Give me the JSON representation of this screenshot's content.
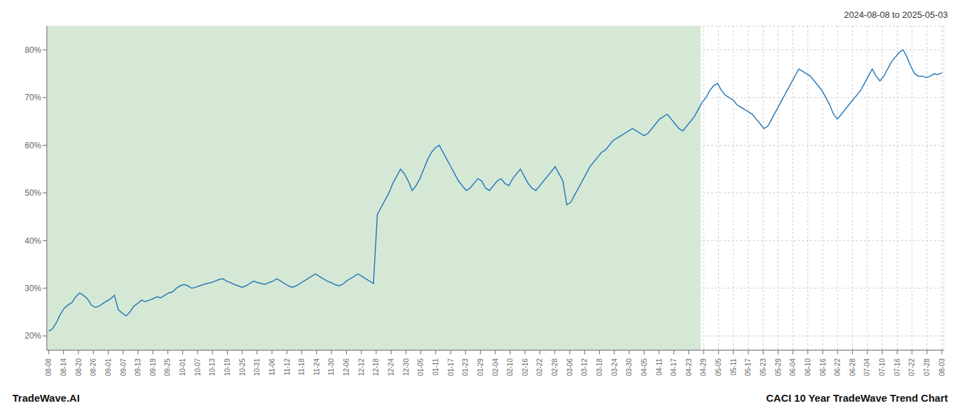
{
  "chart_data": {
    "type": "line",
    "title": "CACI 10 Year TradeWave Trend Chart",
    "subtitle": "2024-08-08 to 2025-05-03",
    "annotations": [
      "TradeWave.AI"
    ],
    "color": "#2878b8",
    "grid": true,
    "shade": {
      "from": -0.5,
      "to": 168.63,
      "color": "#d5e8d5"
    },
    "xlim": [
      -0.5,
      231.5
    ],
    "ylim": [
      17,
      85
    ],
    "yticks": [
      {
        "value": 20,
        "label": "20%"
      },
      {
        "value": 30,
        "label": "30%"
      },
      {
        "value": 40,
        "label": "40%"
      },
      {
        "value": 50,
        "label": "50%"
      },
      {
        "value": 60,
        "label": "60%"
      },
      {
        "value": 70,
        "label": "70%"
      },
      {
        "value": 80,
        "label": "80%"
      }
    ],
    "xticks": [
      {
        "value": 0,
        "label": "08-08"
      },
      {
        "value": 3.85,
        "label": "08-14"
      },
      {
        "value": 7.7,
        "label": "08-20"
      },
      {
        "value": 11.55,
        "label": "08-26"
      },
      {
        "value": 15.4,
        "label": "09-01"
      },
      {
        "value": 19.25,
        "label": "09-07"
      },
      {
        "value": 23.1,
        "label": "09-13"
      },
      {
        "value": 26.95,
        "label": "09-19"
      },
      {
        "value": 30.8,
        "label": "09-25"
      },
      {
        "value": 34.65,
        "label": "10-01"
      },
      {
        "value": 38.5,
        "label": "10-07"
      },
      {
        "value": 42.35,
        "label": "10-13"
      },
      {
        "value": 46.2,
        "label": "10-19"
      },
      {
        "value": 50.05,
        "label": "10-25"
      },
      {
        "value": 53.9,
        "label": "10-31"
      },
      {
        "value": 57.75,
        "label": "11-06"
      },
      {
        "value": 61.6,
        "label": "11-12"
      },
      {
        "value": 65.45,
        "label": "11-18"
      },
      {
        "value": 69.3,
        "label": "11-24"
      },
      {
        "value": 73.15,
        "label": "11-30"
      },
      {
        "value": 77,
        "label": "12-06"
      },
      {
        "value": 80.85,
        "label": "12-12"
      },
      {
        "value": 84.7,
        "label": "12-18"
      },
      {
        "value": 88.55,
        "label": "12-24"
      },
      {
        "value": 92.4,
        "label": "12-30"
      },
      {
        "value": 96.25,
        "label": "01-05"
      },
      {
        "value": 100.1,
        "label": "01-11"
      },
      {
        "value": 103.95,
        "label": "01-17"
      },
      {
        "value": 107.8,
        "label": "01-23"
      },
      {
        "value": 111.65,
        "label": "01-29"
      },
      {
        "value": 115.5,
        "label": "02-04"
      },
      {
        "value": 119.35,
        "label": "02-10"
      },
      {
        "value": 123.2,
        "label": "02-16"
      },
      {
        "value": 127.05,
        "label": "02-22"
      },
      {
        "value": 130.9,
        "label": "02-28"
      },
      {
        "value": 134.75,
        "label": "03-06"
      },
      {
        "value": 138.6,
        "label": "03-12"
      },
      {
        "value": 142.45,
        "label": "03-18"
      },
      {
        "value": 146.3,
        "label": "03-24"
      },
      {
        "value": 150.15,
        "label": "03-30"
      },
      {
        "value": 154,
        "label": "04-05"
      },
      {
        "value": 157.85,
        "label": "04-11"
      },
      {
        "value": 161.7,
        "label": "04-17"
      },
      {
        "value": 165.55,
        "label": "04-23"
      },
      {
        "value": 169.4,
        "label": "04-29"
      },
      {
        "value": 173.25,
        "label": "05-05"
      },
      {
        "value": 177.1,
        "label": "05-11"
      },
      {
        "value": 180.95,
        "label": "05-17"
      },
      {
        "value": 184.8,
        "label": "05-23"
      },
      {
        "value": 188.65,
        "label": "05-29"
      },
      {
        "value": 192.5,
        "label": "06-04"
      },
      {
        "value": 196.35,
        "label": "06-10"
      },
      {
        "value": 200.2,
        "label": "06-16"
      },
      {
        "value": 204.05,
        "label": "06-22"
      },
      {
        "value": 207.9,
        "label": "06-28"
      },
      {
        "value": 211.75,
        "label": "07-04"
      },
      {
        "value": 215.6,
        "label": "07-10"
      },
      {
        "value": 219.45,
        "label": "07-16"
      },
      {
        "value": 223.3,
        "label": "07-22"
      },
      {
        "value": 227.15,
        "label": "07-28"
      },
      {
        "value": 231,
        "label": "08-03"
      }
    ],
    "x": [
      0,
      1,
      2,
      3,
      4,
      5,
      6,
      7,
      8,
      9,
      10,
      11,
      12,
      13,
      14,
      15,
      16,
      17,
      18,
      19,
      20,
      21,
      22,
      23,
      24,
      25,
      26,
      27,
      28,
      29,
      30,
      31,
      32,
      33,
      34,
      35,
      36,
      37,
      38,
      39,
      40,
      41,
      42,
      43,
      44,
      45,
      46,
      47,
      48,
      49,
      50,
      51,
      52,
      53,
      54,
      55,
      56,
      57,
      58,
      59,
      60,
      61,
      62,
      63,
      64,
      65,
      66,
      67,
      68,
      69,
      70,
      71,
      72,
      73,
      74,
      75,
      76,
      77,
      78,
      79,
      80,
      81,
      82,
      83,
      84,
      85,
      86,
      87,
      88,
      89,
      90,
      91,
      92,
      93,
      94,
      95,
      96,
      97,
      98,
      99,
      100,
      101,
      102,
      103,
      104,
      105,
      106,
      107,
      108,
      109,
      110,
      111,
      112,
      113,
      114,
      115,
      116,
      117,
      118,
      119,
      120,
      121,
      122,
      123,
      124,
      125,
      126,
      127,
      128,
      129,
      130,
      131,
      132,
      133,
      134,
      135,
      136,
      137,
      138,
      139,
      140,
      141,
      142,
      143,
      144,
      145,
      146,
      147,
      148,
      149,
      150,
      151,
      152,
      153,
      154,
      155,
      156,
      157,
      158,
      159,
      160,
      161,
      162,
      163,
      164,
      165,
      166,
      167,
      168,
      169,
      170,
      171,
      172,
      173,
      174,
      175,
      176,
      177,
      178,
      179,
      180,
      181,
      182,
      183,
      184,
      185,
      186,
      187,
      188,
      189,
      190,
      191,
      192,
      193,
      194,
      195,
      196,
      197,
      198,
      199,
      200,
      201,
      202,
      203,
      204,
      205,
      206,
      207,
      208,
      209,
      210,
      211,
      212,
      213,
      214,
      215,
      216,
      217,
      218,
      219,
      220,
      221,
      222,
      223,
      224,
      225,
      226,
      227,
      228,
      229,
      230,
      231
    ],
    "values": [
      21.0,
      21.5,
      22.8,
      24.5,
      25.8,
      26.5,
      27.0,
      28.2,
      29.0,
      28.5,
      27.8,
      26.5,
      26.0,
      26.2,
      26.8,
      27.3,
      27.8,
      28.5,
      25.5,
      24.8,
      24.2,
      25.0,
      26.2,
      26.8,
      27.5,
      27.2,
      27.5,
      27.8,
      28.2,
      28.0,
      28.5,
      29.0,
      29.2,
      30.0,
      30.5,
      30.8,
      30.5,
      30.0,
      30.2,
      30.5,
      30.8,
      31.0,
      31.2,
      31.5,
      31.8,
      32.0,
      31.5,
      31.2,
      30.8,
      30.5,
      30.2,
      30.5,
      31.0,
      31.5,
      31.2,
      31.0,
      30.8,
      31.2,
      31.5,
      32.0,
      31.5,
      31.0,
      30.5,
      30.2,
      30.5,
      31.0,
      31.5,
      32.0,
      32.5,
      33.0,
      32.5,
      32.0,
      31.5,
      31.2,
      30.8,
      30.5,
      30.8,
      31.5,
      32.0,
      32.5,
      33.0,
      32.5,
      32.0,
      31.5,
      31.0,
      45.5,
      47.0,
      48.5,
      50.0,
      52.0,
      53.5,
      55.0,
      54.0,
      52.5,
      50.5,
      51.5,
      53.0,
      55.0,
      57.0,
      58.5,
      59.5,
      60.0,
      58.5,
      57.0,
      55.5,
      54.0,
      52.5,
      51.5,
      50.5,
      51.0,
      52.0,
      53.0,
      52.5,
      51.0,
      50.5,
      51.5,
      52.5,
      53.0,
      52.0,
      51.5,
      53.0,
      54.0,
      55.0,
      53.5,
      52.0,
      51.0,
      50.5,
      51.5,
      52.5,
      53.5,
      54.5,
      55.5,
      54.0,
      52.5,
      47.5,
      48.0,
      49.5,
      51.0,
      52.5,
      54.0,
      55.5,
      56.5,
      57.5,
      58.5,
      59.0,
      60.0,
      61.0,
      61.5,
      62.0,
      62.5,
      63.0,
      63.5,
      63.0,
      62.5,
      62.0,
      62.5,
      63.5,
      64.5,
      65.5,
      66.0,
      66.5,
      65.5,
      64.5,
      63.5,
      63.0,
      64.0,
      65.0,
      66.0,
      67.5,
      69.0,
      70.0,
      71.5,
      72.5,
      73.0,
      71.5,
      70.5,
      70.0,
      69.5,
      68.5,
      68.0,
      67.5,
      67.0,
      66.5,
      65.5,
      64.5,
      63.5,
      64.0,
      65.5,
      67.0,
      68.5,
      70.0,
      71.5,
      73.0,
      74.5,
      76.0,
      75.5,
      75.0,
      74.5,
      73.5,
      72.5,
      71.5,
      70.0,
      68.5,
      66.5,
      65.5,
      66.5,
      67.5,
      68.5,
      69.5,
      70.5,
      71.5,
      73.0,
      74.5,
      76.0,
      74.5,
      73.5,
      74.5,
      76.0,
      77.5,
      78.5,
      79.5,
      80.0,
      78.5,
      76.5,
      75.0,
      74.5,
      74.5,
      74.2,
      74.5,
      75.0,
      74.8,
      75.2
    ]
  }
}
